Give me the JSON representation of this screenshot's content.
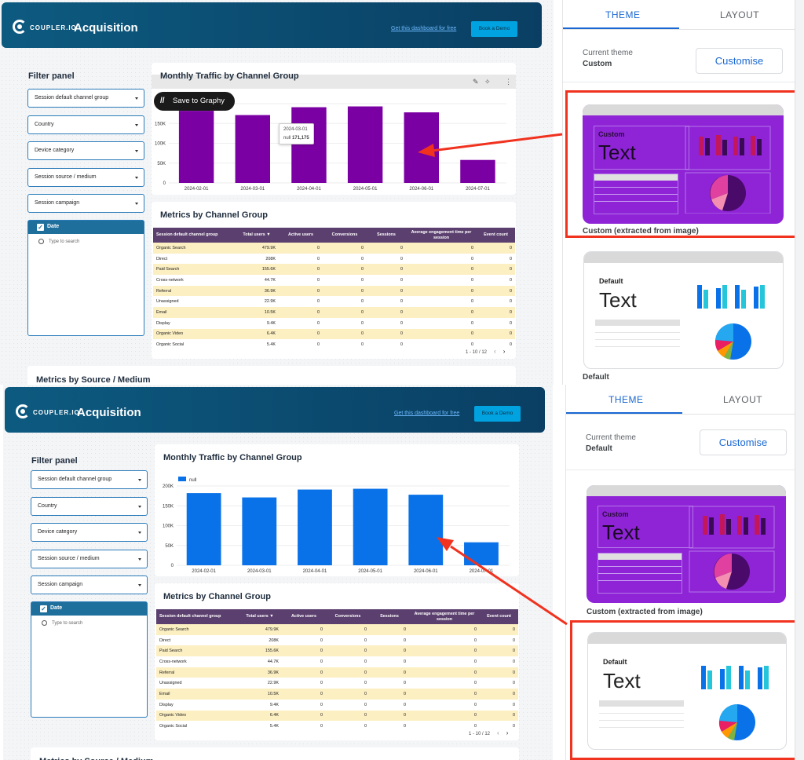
{
  "header": {
    "brand": "COUPLER.IO",
    "title": "Acquisition",
    "get_link": "Get this dashboard for free",
    "book_button": "Book a Demo"
  },
  "filter_panel": {
    "title": "Filter panel",
    "filters": [
      "Session default channel group",
      "Country",
      "Device category",
      "Session source / medium",
      "Session campaign"
    ],
    "date_label": "Date",
    "date_search_placeholder": "Type to search"
  },
  "monthly_chart": {
    "title": "Monthly Traffic by Channel Group",
    "legend_label": "null",
    "tooltip_date": "2024-03-01",
    "tooltip_series": "null",
    "tooltip_value": "171,175",
    "graphy_button": "Save to Graphy"
  },
  "chart_data": [
    {
      "type": "bar",
      "title": "Monthly Traffic by Channel Group",
      "categories": [
        "2024-02-01",
        "2024-03-01",
        "2024-04-01",
        "2024-05-01",
        "2024-06-01",
        "2024-07-01"
      ],
      "series": [
        {
          "name": "null",
          "values": [
            182000,
            171175,
            191000,
            193000,
            178000,
            58000
          ]
        }
      ],
      "ylim": [
        0,
        200000
      ],
      "y_ticks": [
        "0",
        "50K",
        "100K",
        "150K",
        "200K"
      ],
      "theme_color": "#7b00a3"
    },
    {
      "type": "bar",
      "title": "Monthly Traffic by Channel Group",
      "categories": [
        "2024-02-01",
        "2024-03-01",
        "2024-04-01",
        "2024-05-01",
        "2024-06-01",
        "2024-07-01"
      ],
      "series": [
        {
          "name": "null",
          "values": [
            182000,
            171175,
            191000,
            193000,
            178000,
            58000
          ]
        }
      ],
      "ylim": [
        0,
        200000
      ],
      "y_ticks": [
        "0",
        "50K",
        "100K",
        "150K",
        "200K"
      ],
      "legend": "top-left",
      "theme_color": "#0a72e8"
    }
  ],
  "metrics_table": {
    "title": "Metrics by Channel Group",
    "columns": [
      "Session default channel group",
      "Total users ▼",
      "Active users",
      "Conversions",
      "Sessions",
      "Average engagement time per session",
      "Event count"
    ],
    "rows": [
      [
        "Organic Search",
        "479.9K",
        "0",
        "0",
        "0",
        "0",
        "0"
      ],
      [
        "Direct",
        "208K",
        "0",
        "0",
        "0",
        "0",
        "0"
      ],
      [
        "Paid Search",
        "155.6K",
        "0",
        "0",
        "0",
        "0",
        "0"
      ],
      [
        "Cross-network",
        "44.7K",
        "0",
        "0",
        "0",
        "0",
        "0"
      ],
      [
        "Referral",
        "36.9K",
        "0",
        "0",
        "0",
        "0",
        "0"
      ],
      [
        "Unassigned",
        "22.9K",
        "0",
        "0",
        "0",
        "0",
        "0"
      ],
      [
        "Email",
        "10.5K",
        "0",
        "0",
        "0",
        "0",
        "0"
      ],
      [
        "Display",
        "9.4K",
        "0",
        "0",
        "0",
        "0",
        "0"
      ],
      [
        "Organic Video",
        "6.4K",
        "0",
        "0",
        "0",
        "0",
        "0"
      ],
      [
        "Organic Social",
        "5.4K",
        "0",
        "0",
        "0",
        "0",
        "0"
      ]
    ],
    "pager": "1 - 10 / 12"
  },
  "source_medium": {
    "title": "Metrics by Source / Medium"
  },
  "theme_panel": {
    "tab_theme": "THEME",
    "tab_layout": "LAYOUT",
    "current_theme_label": "Current theme",
    "customise_button": "Customise",
    "top_current_theme": "Custom",
    "bottom_current_theme": "Default",
    "custom_thumb_small": "Custom",
    "custom_thumb_big": "Text",
    "custom_label": "Custom (extracted from image)",
    "default_thumb_small": "Default",
    "default_thumb_big": "Text",
    "default_label": "Default"
  },
  "colors": {
    "header_bg": "#0b4d72",
    "purple_theme": "#8e24d6",
    "blue_theme": "#0a72e8",
    "table_header": "#5b3f6e",
    "table_stripe": "#fcefc2",
    "highlight": "#f0321f"
  }
}
